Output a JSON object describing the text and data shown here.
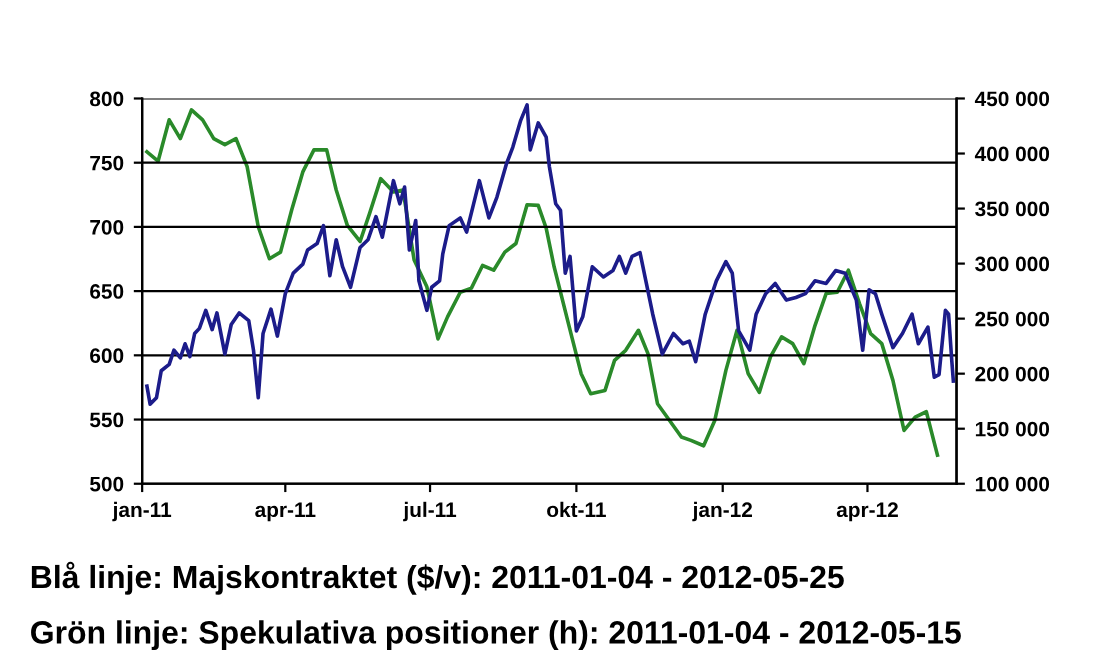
{
  "chart_data": {
    "type": "line",
    "xlim": [
      "2011-01-01",
      "2012-05-27"
    ],
    "xticks": [
      {
        "value": "2011-01-01",
        "label": "jan-11"
      },
      {
        "value": "2011-04-01",
        "label": "apr-11"
      },
      {
        "value": "2011-07-01",
        "label": "jul-11"
      },
      {
        "value": "2011-10-01",
        "label": "okt-11"
      },
      {
        "value": "2012-01-01",
        "label": "jan-12"
      },
      {
        "value": "2012-04-01",
        "label": "apr-12"
      }
    ],
    "ylim": [
      500,
      800
    ],
    "yticks": [
      500,
      550,
      600,
      650,
      700,
      750,
      800
    ],
    "y2lim": [
      100000,
      450000
    ],
    "y2ticks": [
      {
        "value": 100000,
        "label": "100 000"
      },
      {
        "value": 150000,
        "label": "150 000"
      },
      {
        "value": 200000,
        "label": "200 000"
      },
      {
        "value": 250000,
        "label": "250 000"
      },
      {
        "value": 300000,
        "label": "300 000"
      },
      {
        "value": 350000,
        "label": "350 000"
      },
      {
        "value": 400000,
        "label": "400 000"
      },
      {
        "value": 450000,
        "label": "450 000"
      }
    ],
    "grid": "y",
    "marker": "none",
    "line_style": "solid",
    "series": [
      {
        "color": "#1c1c8a",
        "x": [
          "2011-01-04",
          "2011-01-06",
          "2011-01-10",
          "2011-01-13",
          "2011-01-18",
          "2011-01-21",
          "2011-01-25",
          "2011-01-28",
          "2011-01-31",
          "2011-02-03",
          "2011-02-06",
          "2011-02-10",
          "2011-02-14",
          "2011-02-17",
          "2011-02-22",
          "2011-02-26",
          "2011-03-03",
          "2011-03-09",
          "2011-03-12",
          "2011-03-15",
          "2011-03-18",
          "2011-03-23",
          "2011-03-27",
          "2011-04-01",
          "2011-04-06",
          "2011-04-12",
          "2011-04-15",
          "2011-04-21",
          "2011-04-25",
          "2011-04-29",
          "2011-05-03",
          "2011-05-07",
          "2011-05-12",
          "2011-05-18",
          "2011-05-23",
          "2011-05-28",
          "2011-06-01",
          "2011-06-08",
          "2011-06-12",
          "2011-06-15",
          "2011-06-18",
          "2011-06-22",
          "2011-06-24",
          "2011-06-29",
          "2011-07-02",
          "2011-07-07",
          "2011-07-09",
          "2011-07-13",
          "2011-07-20",
          "2011-07-24",
          "2011-07-28",
          "2011-08-01",
          "2011-08-07",
          "2011-08-12",
          "2011-08-18",
          "2011-08-22",
          "2011-08-27",
          "2011-08-31",
          "2011-09-02",
          "2011-09-07",
          "2011-09-12",
          "2011-09-14",
          "2011-09-18",
          "2011-09-21",
          "2011-09-24",
          "2011-09-27",
          "2011-10-01",
          "2011-10-05",
          "2011-10-11",
          "2011-10-18",
          "2011-10-24",
          "2011-10-28",
          "2011-11-01",
          "2011-11-05",
          "2011-11-10",
          "2011-11-14",
          "2011-11-18",
          "2011-11-24",
          "2011-12-01",
          "2011-12-07",
          "2011-12-11",
          "2011-12-15",
          "2011-12-21",
          "2011-12-28",
          "2012-01-03",
          "2012-01-07",
          "2012-01-11",
          "2012-01-18",
          "2012-01-22",
          "2012-01-28",
          "2012-02-03",
          "2012-02-10",
          "2012-02-16",
          "2012-02-22",
          "2012-02-28",
          "2012-03-06",
          "2012-03-12",
          "2012-03-18",
          "2012-03-25",
          "2012-03-29",
          "2012-04-02",
          "2012-04-06",
          "2012-04-10",
          "2012-04-17",
          "2012-04-23",
          "2012-04-29",
          "2012-05-03",
          "2012-05-09",
          "2012-05-13",
          "2012-05-16",
          "2012-05-20",
          "2012-05-22",
          "2012-05-24",
          "2012-05-25"
        ],
        "values": [
          576,
          562,
          567,
          588,
          593,
          604,
          598,
          609,
          599,
          617,
          621,
          635,
          620,
          633,
          601,
          624,
          633,
          627,
          604,
          567,
          617,
          636,
          615,
          648,
          664,
          671,
          682,
          687,
          701,
          662,
          690,
          669,
          653,
          684,
          690,
          708,
          692,
          736,
          718,
          731,
          682,
          705,
          658,
          635,
          653,
          658,
          679,
          701,
          707,
          696,
          716,
          736,
          707,
          723,
          749,
          762,
          783,
          795,
          760,
          781,
          770,
          747,
          718,
          713,
          664,
          677,
          619,
          630,
          669,
          661,
          666,
          677,
          664,
          677,
          680,
          656,
          632,
          601,
          617,
          609,
          611,
          595,
          632,
          658,
          673,
          664,
          619,
          604,
          632,
          648,
          656,
          643,
          645,
          648,
          658,
          656,
          666,
          664,
          643,
          604,
          651,
          648,
          632,
          606,
          617,
          632,
          609,
          622,
          583,
          585,
          635,
          632,
          596,
          580
        ]
      },
      {
        "color": "#2a8a2a",
        "axis": "y2",
        "x": [
          "2011-01-04",
          "2011-01-11",
          "2011-01-18",
          "2011-01-25",
          "2011-02-01",
          "2011-02-08",
          "2011-02-15",
          "2011-02-22",
          "2011-03-01",
          "2011-03-08",
          "2011-03-15",
          "2011-03-22",
          "2011-03-29",
          "2011-04-05",
          "2011-04-12",
          "2011-04-19",
          "2011-04-27",
          "2011-05-03",
          "2011-05-10",
          "2011-05-18",
          "2011-05-24",
          "2011-05-31",
          "2011-06-08",
          "2011-06-14",
          "2011-06-21",
          "2011-06-29",
          "2011-07-06",
          "2011-07-12",
          "2011-07-20",
          "2011-07-27",
          "2011-08-03",
          "2011-08-10",
          "2011-08-17",
          "2011-08-24",
          "2011-08-31",
          "2011-09-07",
          "2011-09-12",
          "2011-09-17",
          "2011-09-26",
          "2011-10-04",
          "2011-10-10",
          "2011-10-19",
          "2011-10-25",
          "2011-11-01",
          "2011-11-09",
          "2011-11-15",
          "2011-11-21",
          "2011-11-27",
          "2011-12-06",
          "2011-12-12",
          "2011-12-20",
          "2011-12-27",
          "2012-01-03",
          "2012-01-10",
          "2012-01-17",
          "2012-01-24",
          "2012-01-31",
          "2012-02-07",
          "2012-02-14",
          "2012-02-21",
          "2012-02-28",
          "2012-03-06",
          "2012-03-13",
          "2012-03-20",
          "2012-03-27",
          "2012-04-03",
          "2012-04-10",
          "2012-04-17",
          "2012-04-24",
          "2012-05-01",
          "2012-05-08",
          "2012-05-15"
        ],
        "values": [
          401500,
          393000,
          430600,
          413600,
          439700,
          430600,
          413600,
          408100,
          413600,
          388100,
          333500,
          304400,
          310400,
          348700,
          383300,
          403300,
          403300,
          366900,
          334700,
          320100,
          345600,
          377200,
          365000,
          366900,
          303200,
          278900,
          231600,
          251600,
          274000,
          277700,
          298300,
          294000,
          310400,
          318300,
          353500,
          352900,
          332300,
          297100,
          245500,
          200000,
          181800,
          184800,
          212100,
          221200,
          239400,
          218200,
          172700,
          160600,
          142400,
          139400,
          134500,
          157500,
          203000,
          239400,
          200000,
          183000,
          215200,
          233400,
          227300,
          209100,
          243700,
          272800,
          274000,
          294000,
          263700,
          236400,
          227300,
          193900,
          148400,
          160600,
          165400,
          126000
        ]
      }
    ],
    "annotations": [
      "Blå linje: Majskontraktet ($/v): 2011-01-04 - 2012-05-25",
      "Grön linje: Spekulativa positioner (h): 2011-01-04 - 2012-05-15"
    ]
  }
}
